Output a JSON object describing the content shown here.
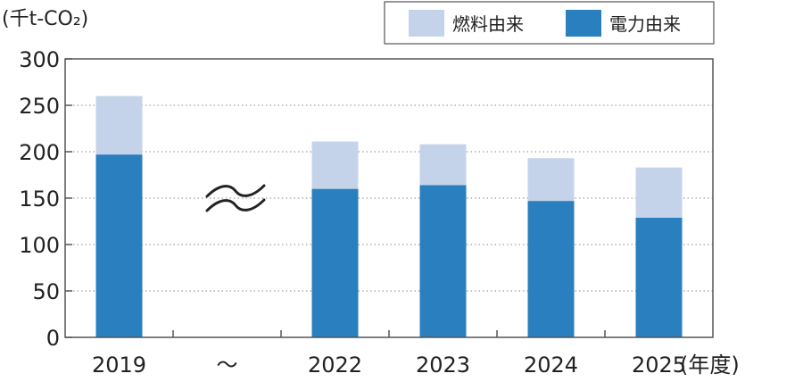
{
  "chart_data": {
    "type": "bar",
    "stacked": true,
    "categories": [
      "2019",
      "〜",
      "2022",
      "2023",
      "2024",
      "2025"
    ],
    "series": [
      {
        "name": "電力由来",
        "color": "#2a7fbe",
        "values": [
          197,
          null,
          160,
          164,
          147,
          129
        ]
      },
      {
        "name": "燃料由来",
        "color": "#c5d3ea",
        "values": [
          63,
          null,
          51,
          44,
          46,
          54
        ]
      }
    ],
    "y_unit_label": "(千t-CO₂)",
    "x_unit_label": "(年度)",
    "ylim": [
      0,
      300
    ],
    "yticks": [
      0,
      50,
      100,
      150,
      200,
      250,
      300
    ],
    "grid": true,
    "legend_position": "top-right",
    "axis_break_symbol": "≈"
  }
}
